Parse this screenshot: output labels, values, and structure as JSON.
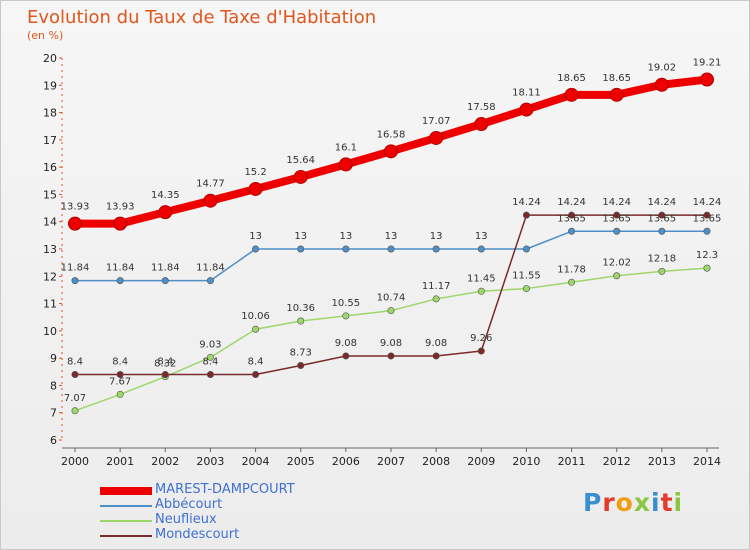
{
  "header": {
    "title": "Evolution du Taux de Taxe d'Habitation",
    "unit": "(en %)"
  },
  "logo": {
    "text": "Proxiti",
    "letter_colors": [
      "#3a8ed0",
      "#e23b2e",
      "#f39c12",
      "#8cc63f",
      "#3a8ed0",
      "#e23b2e",
      "#8cc63f"
    ]
  },
  "chart_data": {
    "type": "line",
    "title": "Evolution du Taux de Taxe d'Habitation",
    "ylabel": "(en %)",
    "xlabel": "",
    "ylim": [
      6,
      20
    ],
    "yticks": [
      6,
      7,
      8,
      9,
      10,
      11,
      12,
      13,
      14,
      15,
      16,
      17,
      18,
      19,
      20
    ],
    "grid": false,
    "legend_position": "bottom-left",
    "x": [
      "2000",
      "2001",
      "2002",
      "2003",
      "2004",
      "2005",
      "2006",
      "2007",
      "2008",
      "2009",
      "2010",
      "2011",
      "2012",
      "2013",
      "2014"
    ],
    "series": [
      {
        "name": "MAREST-DAMPCOURT",
        "color": "#ee0000",
        "values": [
          13.93,
          13.93,
          14.35,
          14.77,
          15.2,
          15.64,
          16.1,
          16.58,
          17.07,
          17.58,
          18.11,
          18.65,
          18.65,
          19.02,
          19.21
        ],
        "labels": [
          "13.93",
          "13.93",
          "14.35",
          "14.77",
          "15.2",
          "15.64",
          "16.1",
          "16.58",
          "17.07",
          "17.58",
          "18.11",
          "18.65",
          "18.65",
          "19.02",
          "19.21"
        ]
      },
      {
        "name": "Abbécourt",
        "color": "#4f8fc8",
        "values": [
          11.84,
          11.84,
          11.84,
          11.84,
          13,
          13,
          13,
          13,
          13,
          13,
          13,
          13.65,
          13.65,
          13.65,
          13.65
        ],
        "labels": [
          "11.84",
          "11.84",
          "11.84",
          "11.84",
          "13",
          "13",
          "13",
          "13",
          "13",
          "13",
          "",
          "13.65",
          "13.65",
          "13.65",
          "13.65"
        ]
      },
      {
        "name": "Neuflieux",
        "color": "#9ed66a",
        "values": [
          7.07,
          7.67,
          8.32,
          9.03,
          10.06,
          10.36,
          10.55,
          10.74,
          11.17,
          11.45,
          11.55,
          11.78,
          12.02,
          12.18,
          12.3
        ],
        "labels": [
          "7.07",
          "7.67",
          "8.32",
          "9.03",
          "10.06",
          "10.36",
          "10.55",
          "10.74",
          "11.17",
          "11.45",
          "11.55",
          "11.78",
          "12.02",
          "12.18",
          "12.3"
        ]
      },
      {
        "name": "Mondescourt",
        "color": "#7a2a2a",
        "values": [
          8.4,
          8.4,
          8.4,
          8.4,
          8.4,
          8.73,
          9.08,
          9.08,
          9.08,
          9.26,
          14.24,
          14.24,
          14.24,
          14.24,
          14.24
        ],
        "labels": [
          "8.4",
          "8.4",
          "8.4",
          "8.4",
          "8.4",
          "8.73",
          "9.08",
          "9.08",
          "9.08",
          "9.26",
          "14.24",
          "14.24",
          "14.24",
          "14.24",
          "14.24"
        ]
      }
    ]
  }
}
